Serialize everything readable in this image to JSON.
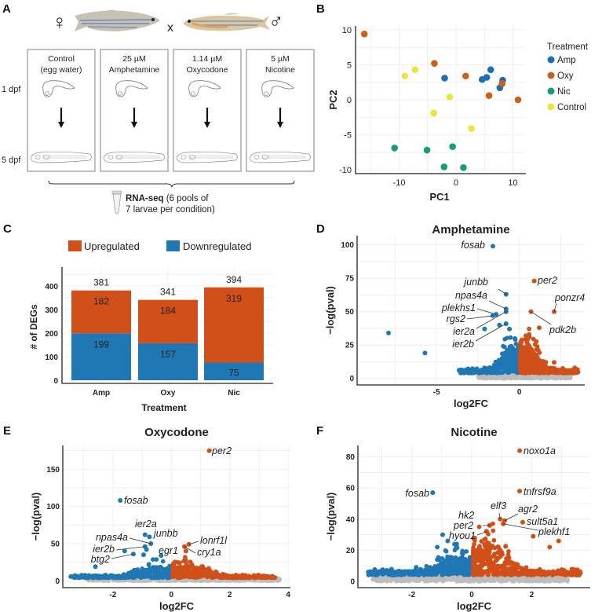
{
  "figure": {
    "panels": {
      "A": "A",
      "B": "B",
      "C": "C",
      "D": "D",
      "E": "E",
      "F": "F"
    }
  },
  "panel_a": {
    "female_symbol": "♀",
    "male_symbol": "♂",
    "cross_symbol": "x",
    "stage_labels": [
      "1 dpf",
      "5 dpf"
    ],
    "conditions": [
      {
        "line1": "Control",
        "line2": "(egg water)"
      },
      {
        "line1": "25 µM",
        "line2": "Amphetamine"
      },
      {
        "line1": "1.14 µM",
        "line2": "Oxycodone"
      },
      {
        "line1": "5 µM",
        "line2": "Nicotine"
      }
    ],
    "rnaseq_bold": "RNA-seq",
    "rnaseq_rest": " (6 pools of",
    "rnaseq_line2": "7 larvae per condition)",
    "icons": [
      "female-fish-image",
      "male-fish-image",
      "embryo-1dpf-drawing",
      "larva-5dpf-drawing",
      "down-arrow-icon",
      "eppendorf-tube-icon"
    ]
  },
  "chart_data": [
    {
      "id": "B",
      "type": "scatter",
      "title": "",
      "xlabel": "PC1",
      "ylabel": "PC2",
      "xlim": [
        -17,
        12
      ],
      "ylim": [
        -10.5,
        10.8
      ],
      "xticks": [
        -10,
        0,
        10
      ],
      "yticks": [
        -10,
        -5,
        0,
        5,
        10
      ],
      "grid": true,
      "legend": {
        "title": "Treatment",
        "position": "right",
        "entries": [
          "Amp",
          "Oxy",
          "Nic",
          "Control"
        ]
      },
      "colors": {
        "Amp": "#1c6fb4",
        "Oxy": "#c9601d",
        "Nic": "#169c7b",
        "Control": "#ece33f"
      },
      "series": [
        {
          "name": "Amp",
          "points": [
            [
              -2.0,
              3.1
            ],
            [
              4.6,
              2.9
            ],
            [
              5.4,
              3.2
            ],
            [
              6.1,
              4.3
            ],
            [
              8.2,
              2.8
            ],
            [
              7.7,
              1.7
            ]
          ]
        },
        {
          "name": "Oxy",
          "points": [
            [
              -16.1,
              9.4
            ],
            [
              -3.8,
              5.2
            ],
            [
              1.7,
              3.4
            ],
            [
              8.1,
              2.3
            ],
            [
              5.8,
              0.6
            ],
            [
              10.9,
              0.0
            ]
          ]
        },
        {
          "name": "Nic",
          "points": [
            [
              -10.8,
              -6.9
            ],
            [
              -5.1,
              -7.2
            ],
            [
              -0.6,
              -6.7
            ],
            [
              -2.1,
              -9.6
            ],
            [
              1.3,
              -9.7
            ]
          ]
        },
        {
          "name": "Control",
          "points": [
            [
              -9.0,
              3.4
            ],
            [
              -7.2,
              4.3
            ],
            [
              -1.1,
              0.4
            ],
            [
              -3.9,
              -1.9
            ],
            [
              2.7,
              -4.1
            ]
          ]
        }
      ]
    },
    {
      "id": "C",
      "type": "bar",
      "stacked": true,
      "title": "",
      "xlabel": "Treatment",
      "ylabel": "# of DEGs",
      "categories": [
        "Amp",
        "Oxy",
        "Nic"
      ],
      "ylim": [
        0,
        460
      ],
      "yticks": [
        0,
        100,
        200,
        300,
        400
      ],
      "grid": true,
      "legend": {
        "position": "top",
        "entries": [
          "Upregulated",
          "Downregulated"
        ]
      },
      "series": [
        {
          "name": "Downregulated",
          "color": "#1f77b4",
          "values": [
            199,
            157,
            75
          ]
        },
        {
          "name": "Upregulated",
          "color": "#d14f19",
          "values": [
            182,
            184,
            319
          ]
        }
      ],
      "totals": [
        381,
        341,
        394
      ]
    },
    {
      "id": "D",
      "type": "scatter",
      "subtype": "volcano",
      "title": "Amphetamine",
      "xlabel": "log2FC",
      "ylabel": "−log(pval)",
      "xlim": [
        -9.8,
        3.9
      ],
      "ylim": [
        -5,
        105
      ],
      "xticks": [
        -5,
        0
      ],
      "yticks": [
        0,
        25,
        50,
        75,
        100
      ],
      "grid": true,
      "colors": {
        "down": "#1f77b4",
        "up": "#d14f19",
        "ns": "#bdbdbd"
      },
      "cloud": {
        "down_min_x": -3.6,
        "up_max_x": 3.5,
        "ns_range": [
          -2.5,
          3.1
        ],
        "down_peak": 30,
        "up_peak": 30
      },
      "labeled_genes": [
        {
          "gene": "fosab",
          "x": -1.6,
          "y": 99,
          "dir": "down",
          "label_dx": -4,
          "label_dy": 0,
          "anchor": "end"
        },
        {
          "gene": "junbb",
          "x": -0.8,
          "y": 63,
          "dir": "down"
        },
        {
          "gene": "npas4a",
          "x": -0.8,
          "y": 52,
          "dir": "down"
        },
        {
          "gene": "plekhs1",
          "x": -1.4,
          "y": 48,
          "dir": "down"
        },
        {
          "gene": "rgs2",
          "x": -1.6,
          "y": 47,
          "dir": "down"
        },
        {
          "gene": "ier2a",
          "x": -0.8,
          "y": 50,
          "dir": "down"
        },
        {
          "gene": "ier2b",
          "x": -0.8,
          "y": 41,
          "dir": "down"
        },
        {
          "gene": "per2",
          "x": 0.9,
          "y": 73,
          "dir": "up"
        },
        {
          "gene": "ponzr4",
          "x": 2.1,
          "y": 50,
          "dir": "up"
        },
        {
          "gene": "pdk2b",
          "x": 0.7,
          "y": 50,
          "dir": "up"
        }
      ],
      "other_points": [
        {
          "x": -7.9,
          "y": 34,
          "dir": "down"
        },
        {
          "x": -5.7,
          "y": 19,
          "dir": "down"
        },
        {
          "x": 1.2,
          "y": 38,
          "dir": "up"
        },
        {
          "x": -2.1,
          "y": 37,
          "dir": "down"
        },
        {
          "x": -1.2,
          "y": 40,
          "dir": "down"
        },
        {
          "x": -0.6,
          "y": 37,
          "dir": "down"
        },
        {
          "x": 0.4,
          "y": 32,
          "dir": "up"
        },
        {
          "x": 2.1,
          "y": 12,
          "dir": "up"
        },
        {
          "x": 3.3,
          "y": 4,
          "dir": "up"
        }
      ]
    },
    {
      "id": "E",
      "type": "scatter",
      "subtype": "volcano",
      "title": "Oxycodone",
      "xlabel": "log2FC",
      "ylabel": "−log(pval)",
      "xlim": [
        -3.7,
        4.0
      ],
      "ylim": [
        -8,
        185
      ],
      "xticks": [
        -2,
        0,
        2,
        4
      ],
      "yticks": [
        0,
        50,
        100,
        150
      ],
      "grid": true,
      "colors": {
        "down": "#1f77b4",
        "up": "#d14f19",
        "ns": "#bdbdbd"
      },
      "cloud": {
        "down_min_x": -3.4,
        "up_max_x": 3.5,
        "ns_range": [
          -2.9,
          3.7
        ],
        "down_peak": 22,
        "up_peak": 24
      },
      "labeled_genes": [
        {
          "gene": "per2",
          "x": 1.3,
          "y": 175,
          "dir": "up"
        },
        {
          "gene": "fosab",
          "x": -1.75,
          "y": 108,
          "dir": "down"
        },
        {
          "gene": "ier2a",
          "x": -0.9,
          "y": 62,
          "dir": "down"
        },
        {
          "gene": "junbb",
          "x": -0.75,
          "y": 59,
          "dir": "down"
        },
        {
          "gene": "npas4a",
          "x": -0.7,
          "y": 50,
          "dir": "down"
        },
        {
          "gene": "ier2b",
          "x": -0.9,
          "y": 46,
          "dir": "down"
        },
        {
          "gene": "btg2",
          "x": -1.3,
          "y": 36,
          "dir": "down"
        },
        {
          "gene": "egr1",
          "x": -0.35,
          "y": 34,
          "dir": "down"
        },
        {
          "gene": "lonrf1l",
          "x": 0.6,
          "y": 49,
          "dir": "up"
        },
        {
          "gene": "cry1a",
          "x": 0.45,
          "y": 46,
          "dir": "up"
        }
      ],
      "other_points": [
        {
          "x": -1.6,
          "y": 40,
          "dir": "down"
        },
        {
          "x": -0.95,
          "y": 35,
          "dir": "down"
        },
        {
          "x": -0.85,
          "y": 42,
          "dir": "down"
        },
        {
          "x": 0.5,
          "y": 40,
          "dir": "up"
        },
        {
          "x": -2.6,
          "y": 19,
          "dir": "down"
        },
        {
          "x": -3.3,
          "y": 7,
          "dir": "down"
        },
        {
          "x": 3.45,
          "y": 6,
          "dir": "up"
        },
        {
          "x": 3.7,
          "y": 2,
          "dir": "ns"
        }
      ]
    },
    {
      "id": "F",
      "type": "scatter",
      "subtype": "volcano",
      "title": "Nicotine",
      "xlabel": "log2FC",
      "ylabel": "−log(pval)",
      "xlim": [
        -3.8,
        3.9
      ],
      "ylim": [
        -4,
        88
      ],
      "xticks": [
        -2,
        0,
        2
      ],
      "yticks": [
        0,
        20,
        40,
        60,
        80
      ],
      "grid": true,
      "colors": {
        "down": "#1f77b4",
        "up": "#d14f19",
        "ns": "#bdbdbd"
      },
      "cloud": {
        "down_min_x": -3.4,
        "up_max_x": 3.6,
        "ns_range": [
          -3.3,
          3.2
        ],
        "down_peak": 16,
        "up_peak": 32
      },
      "labeled_genes": [
        {
          "gene": "noxo1a",
          "x": 1.6,
          "y": 84,
          "dir": "up"
        },
        {
          "gene": "tnfrsf9a",
          "x": 1.6,
          "y": 58,
          "dir": "up"
        },
        {
          "gene": "fosab",
          "x": -1.3,
          "y": 57,
          "dir": "down"
        },
        {
          "gene": "elf3",
          "x": 0.95,
          "y": 40,
          "dir": "up"
        },
        {
          "gene": "agr2",
          "x": 1.1,
          "y": 39,
          "dir": "up"
        },
        {
          "gene": "sult5a1",
          "x": 1.7,
          "y": 38,
          "dir": "up"
        },
        {
          "gene": "plekhf1",
          "x": 1.05,
          "y": 37,
          "dir": "up"
        },
        {
          "gene": "hk2",
          "x": 0.6,
          "y": 36,
          "dir": "up"
        },
        {
          "gene": "per2",
          "x": 0.6,
          "y": 36,
          "dir": "up"
        },
        {
          "gene": "hyou1",
          "x": 0.5,
          "y": 32,
          "dir": "up"
        }
      ],
      "other_points": [
        {
          "x": -0.97,
          "y": 30,
          "dir": "down"
        },
        {
          "x": -1.15,
          "y": 22,
          "dir": "down"
        },
        {
          "x": -0.5,
          "y": 24,
          "dir": "down"
        },
        {
          "x": -0.8,
          "y": 26,
          "dir": "down"
        },
        {
          "x": -1.85,
          "y": 9,
          "dir": "down"
        },
        {
          "x": -3.45,
          "y": 6,
          "dir": "down"
        },
        {
          "x": 2.9,
          "y": 26,
          "dir": "up"
        },
        {
          "x": 2.6,
          "y": 22,
          "dir": "up"
        },
        {
          "x": 2.05,
          "y": 29,
          "dir": "up"
        },
        {
          "x": 3.5,
          "y": 4,
          "dir": "up"
        },
        {
          "x": 3.2,
          "y": 1,
          "dir": "ns"
        }
      ]
    }
  ]
}
